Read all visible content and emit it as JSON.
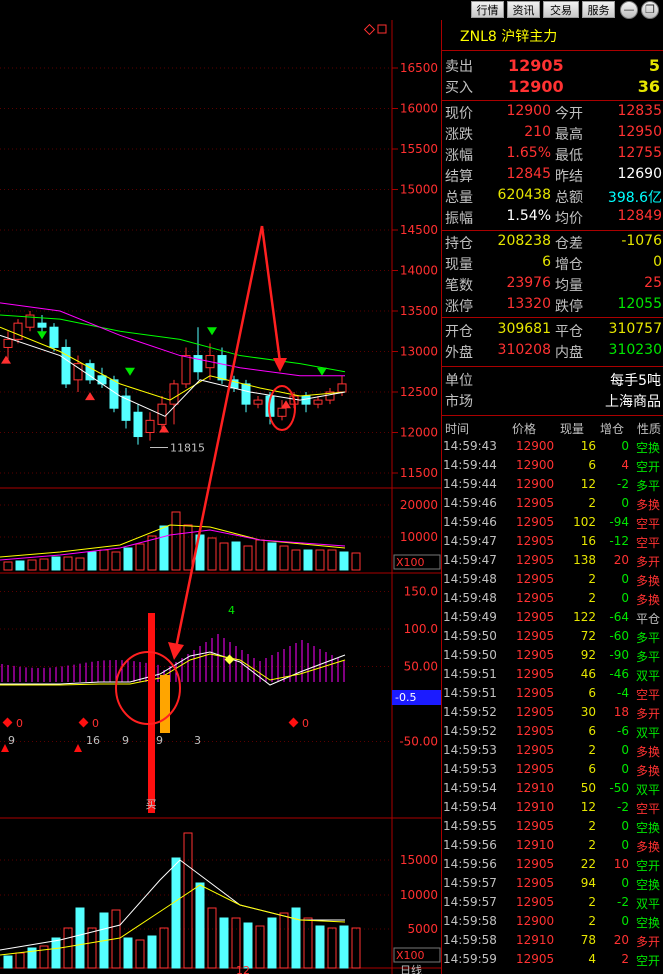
{
  "top_tabs": [
    "行情",
    "资讯",
    "交易",
    "服务"
  ],
  "window_controls": [
    "minimize-icon",
    "restore-icon"
  ],
  "symbol": "ZNL8 沪锌主力",
  "orderbook": {
    "sell_label": "卖出",
    "sell_price": "12905",
    "sell_vol": "5",
    "buy_label": "买入",
    "buy_price": "12900",
    "buy_vol": "36"
  },
  "quote_rows": [
    {
      "l1": "现价",
      "v1": "12900",
      "c1": "red",
      "l2": "今开",
      "v2": "12835",
      "c2": "red"
    },
    {
      "l1": "涨跌",
      "v1": "210",
      "c1": "red",
      "l2": "最高",
      "v2": "12950",
      "c2": "red"
    },
    {
      "l1": "涨幅",
      "v1": "1.65%",
      "c1": "red",
      "l2": "最低",
      "v2": "12755",
      "c2": "red"
    },
    {
      "l1": "结算",
      "v1": "12845",
      "c1": "red",
      "l2": "昨结",
      "v2": "12690",
      "c2": "wht"
    },
    {
      "l1": "总量",
      "v1": "620438",
      "c1": "yel",
      "l2": "总额",
      "v2": "398.6亿",
      "c2": "cyn"
    },
    {
      "l1": "振幅",
      "v1": "1.54%",
      "c1": "wht",
      "l2": "均价",
      "v2": "12849",
      "c2": "red"
    }
  ],
  "position_rows": [
    {
      "l1": "持仓",
      "v1": "208238",
      "c1": "yel",
      "l2": "仓差",
      "v2": "-1076",
      "c2": "yel"
    },
    {
      "l1": "现量",
      "v1": "6",
      "c1": "yel",
      "l2": "增仓",
      "v2": "0",
      "c2": "yel"
    },
    {
      "l1": "笔数",
      "v1": "23976",
      "c1": "red",
      "l2": "均量",
      "v2": "25",
      "c2": "red"
    },
    {
      "l1": "涨停",
      "v1": "13320",
      "c1": "red",
      "l2": "跌停",
      "v2": "12055",
      "c2": "grn"
    }
  ],
  "open_close_rows": [
    {
      "l1": "开仓",
      "v1": "309681",
      "c1": "yel",
      "l2": "平仓",
      "v2": "310757",
      "c2": "yel"
    },
    {
      "l1": "外盘",
      "v1": "310208",
      "c1": "red",
      "l2": "内盘",
      "v2": "310230",
      "c2": "grn"
    }
  ],
  "info_rows": [
    {
      "label": "单位",
      "value": "每手5吨"
    },
    {
      "label": "市场",
      "value": "上海商品"
    }
  ],
  "tick_header": [
    "时间",
    "价格",
    "现量",
    "增仓",
    "性质"
  ],
  "ticks": [
    [
      "14:59:43",
      "12900",
      "16",
      "0",
      "空换"
    ],
    [
      "14:59:44",
      "12900",
      "6",
      "4",
      "空开"
    ],
    [
      "14:59:44",
      "12900",
      "12",
      "-2",
      "多平"
    ],
    [
      "14:59:46",
      "12905",
      "2",
      "0",
      "多换"
    ],
    [
      "14:59:46",
      "12905",
      "102",
      "-94",
      "空平"
    ],
    [
      "14:59:47",
      "12905",
      "16",
      "-12",
      "空平"
    ],
    [
      "14:59:47",
      "12905",
      "138",
      "20",
      "多开"
    ],
    [
      "14:59:48",
      "12905",
      "2",
      "0",
      "多换"
    ],
    [
      "14:59:48",
      "12905",
      "2",
      "0",
      "多换"
    ],
    [
      "14:59:49",
      "12905",
      "122",
      "-64",
      "平仓"
    ],
    [
      "14:59:50",
      "12905",
      "72",
      "-60",
      "多平"
    ],
    [
      "14:59:50",
      "12905",
      "92",
      "-90",
      "多平"
    ],
    [
      "14:59:51",
      "12905",
      "46",
      "-46",
      "双平"
    ],
    [
      "14:59:51",
      "12905",
      "6",
      "-4",
      "空平"
    ],
    [
      "14:59:52",
      "12905",
      "30",
      "18",
      "多开"
    ],
    [
      "14:59:52",
      "12905",
      "6",
      "-6",
      "双平"
    ],
    [
      "14:59:53",
      "12905",
      "2",
      "0",
      "多换"
    ],
    [
      "14:59:53",
      "12905",
      "6",
      "0",
      "多换"
    ],
    [
      "14:59:54",
      "12910",
      "50",
      "-50",
      "双平"
    ],
    [
      "14:59:54",
      "12910",
      "12",
      "-2",
      "空平"
    ],
    [
      "14:59:55",
      "12905",
      "2",
      "0",
      "空换"
    ],
    [
      "14:59:56",
      "12910",
      "2",
      "0",
      "多换"
    ],
    [
      "14:59:56",
      "12905",
      "22",
      "10",
      "空开"
    ],
    [
      "14:59:57",
      "12905",
      "94",
      "0",
      "空换"
    ],
    [
      "14:59:57",
      "12905",
      "2",
      "-2",
      "双平"
    ],
    [
      "14:59:58",
      "12900",
      "2",
      "0",
      "空换"
    ],
    [
      "14:59:58",
      "12910",
      "78",
      "20",
      "多开"
    ],
    [
      "14:59:59",
      "12905",
      "4",
      "2",
      "空开"
    ]
  ],
  "tick_colors": {
    "空换": "#00e600",
    "空开": "#00e600",
    "空平": "#ff3232",
    "多平": "#00e600",
    "多换": "#ff3232",
    "多开": "#ff3232",
    "平仓": "#c0c0c0",
    "双平": "#00e600"
  },
  "chart": {
    "price_axis": [
      "16500",
      "16000",
      "15500",
      "15000",
      "14500",
      "14000",
      "13500",
      "13000",
      "12500",
      "12000",
      "11500"
    ],
    "low_label": "11815",
    "vol_axis": [
      "20000",
      "10000",
      "X100"
    ],
    "macd_axis": [
      "150.0",
      "100.0",
      "50.00",
      "-0.5",
      "-50.00"
    ],
    "macd_marker": "4",
    "buy_label": "买",
    "buy_marker": "↑",
    "oi_axis": [
      "15000",
      "10000",
      "5000",
      "X100"
    ],
    "bottom_labels": [
      "12",
      "日线"
    ],
    "signal_labels": [
      "0",
      "0",
      "0",
      "9",
      "16",
      "9",
      "9",
      "3"
    ]
  },
  "colors": {
    "bg": "#000000",
    "border": "#aa0000",
    "up": "#ff3232",
    "down": "#54ffff",
    "ma1": "#ffffff",
    "ma2": "#ffff00",
    "ma3": "#ff00ff",
    "ma4": "#00ff00",
    "annot": "#ff2020"
  }
}
